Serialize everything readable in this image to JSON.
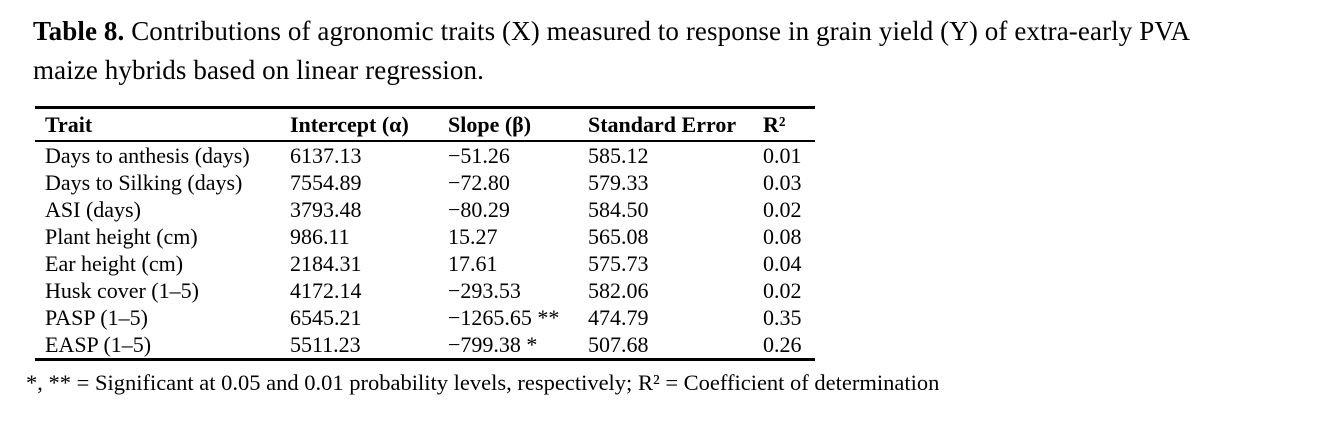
{
  "colors": {
    "background": "#ffffff",
    "text": "#000000",
    "rule": "#000000"
  },
  "caption": {
    "label": "Table 8.",
    "line1": "Contributions of agronomic traits (X) measured to response in grain yield (Y) of extra-early PVA",
    "line2": "maize hybrids based on linear regression."
  },
  "table": {
    "columns": [
      "Trait",
      "Intercept (α)",
      "Slope (β)",
      "Standard Error",
      "R²"
    ],
    "rows": [
      [
        "Days to anthesis (days)",
        "6137.13",
        "−51.26",
        "585.12",
        "0.01"
      ],
      [
        "Days to Silking (days)",
        "7554.89",
        "−72.80",
        "579.33",
        "0.03"
      ],
      [
        "ASI (days)",
        "3793.48",
        "−80.29",
        "584.50",
        "0.02"
      ],
      [
        "Plant height (cm)",
        "986.11",
        "15.27",
        "565.08",
        "0.08"
      ],
      [
        "Ear height (cm)",
        "2184.31",
        "17.61",
        "575.73",
        "0.04"
      ],
      [
        "Husk cover (1–5)",
        "4172.14",
        "−293.53",
        "582.06",
        "0.02"
      ],
      [
        "PASP (1–5)",
        "6545.21",
        "−1265.65 **",
        "474.79",
        "0.35"
      ],
      [
        "EASP (1–5)",
        "5511.23",
        "−799.38 *",
        "507.68",
        "0.26"
      ]
    ]
  },
  "footnote": "*, ** = Significant at 0.05 and 0.01 probability levels, respectively; R² = Coefficient of determination"
}
